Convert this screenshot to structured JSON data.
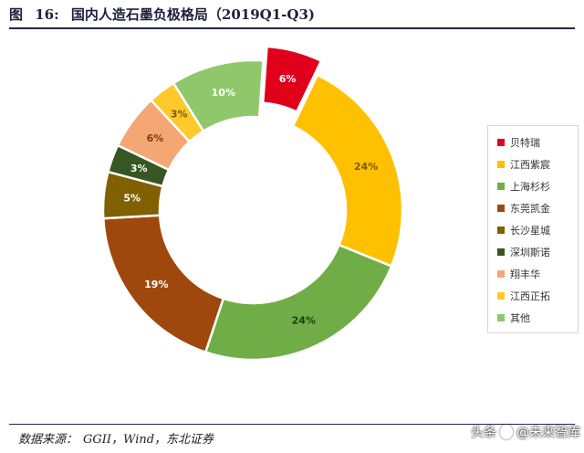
{
  "figure": {
    "label": "图",
    "number": "16:",
    "title": "国内人造石墨负极格局（2019Q1-Q3)"
  },
  "source": {
    "label": "数据来源：",
    "text": "GGII，Wind，东北证券"
  },
  "watermark": {
    "text1": "头条",
    "text2": "@未来智库"
  },
  "chart_data": {
    "type": "pie",
    "donut": true,
    "exploded": [
      "贝特瑞"
    ],
    "categories": [
      "贝特瑞",
      "江西紫宸",
      "上海杉杉",
      "东莞凯金",
      "长沙星城",
      "深圳斯诺",
      "翔丰华",
      "江西正拓",
      "其他"
    ],
    "values": [
      6,
      24,
      24,
      19,
      5,
      3,
      6,
      3,
      10
    ],
    "labels": [
      "6%",
      "24%",
      "24%",
      "19%",
      "5%",
      "3%",
      "6%",
      "3%",
      "10%"
    ],
    "colors": [
      "#e0001b",
      "#ffc000",
      "#70ad47",
      "#9e480e",
      "#806000",
      "#375623",
      "#f4a673",
      "#ffc92a",
      "#8fc76a"
    ],
    "label_colors": [
      "#ffffff",
      "#7a5a00",
      "#1f3d10",
      "#ffffff",
      "#ffffff",
      "#ffffff",
      "#7a3d10",
      "#7a5a00",
      "#ffffff"
    ],
    "legend_position": "right"
  }
}
